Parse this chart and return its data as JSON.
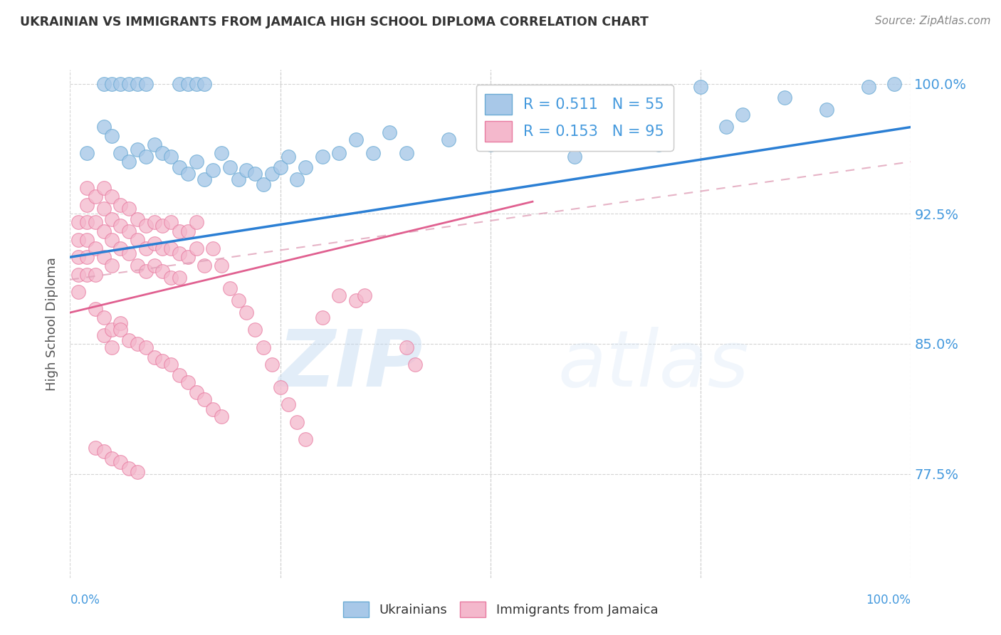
{
  "title": "UKRAINIAN VS IMMIGRANTS FROM JAMAICA HIGH SCHOOL DIPLOMA CORRELATION CHART",
  "source": "Source: ZipAtlas.com",
  "ylabel": "High School Diploma",
  "watermark_zip": "ZIP",
  "watermark_atlas": "atlas",
  "legend_line1": "R = 0.511   N = 55",
  "legend_line2": "R = 0.153   N = 95",
  "legend_label1": "Ukrainians",
  "legend_label2": "Immigrants from Jamaica",
  "blue_scatter_color": "#a8c8e8",
  "blue_edge_color": "#6aaad4",
  "pink_scatter_color": "#f4b8cc",
  "pink_edge_color": "#e87aa0",
  "blue_line_color": "#2b7fd4",
  "pink_line_color": "#e06090",
  "dashed_line_color": "#e0a0b8",
  "ytick_color": "#4499dd",
  "title_color": "#333333",
  "source_color": "#888888",
  "background_color": "#ffffff",
  "grid_color": "#d0d0d0",
  "xlim": [
    0.0,
    1.0
  ],
  "ylim": [
    0.715,
    1.008
  ],
  "yticks": [
    0.775,
    0.85,
    0.925,
    1.0
  ],
  "ytick_labels": [
    "77.5%",
    "85.0%",
    "92.5%",
    "100.0%"
  ],
  "blue_line_y0": 0.9,
  "blue_line_y1": 0.975,
  "pink_line_x0": 0.0,
  "pink_line_x1": 0.55,
  "pink_line_y0": 0.868,
  "pink_line_y1": 0.932,
  "dashed_line_x0": 0.0,
  "dashed_line_x1": 1.0,
  "dashed_line_y0": 0.887,
  "dashed_line_y1": 0.955,
  "blue_scatter_x": [
    0.02,
    0.04,
    0.05,
    0.06,
    0.07,
    0.08,
    0.09,
    0.1,
    0.11,
    0.12,
    0.13,
    0.14,
    0.15,
    0.16,
    0.17,
    0.18,
    0.19,
    0.2,
    0.21,
    0.22,
    0.23,
    0.24,
    0.25,
    0.26,
    0.27,
    0.28,
    0.3,
    0.32,
    0.34,
    0.36,
    0.38,
    0.4,
    0.45,
    0.5,
    0.55,
    0.6,
    0.65,
    0.7,
    0.75,
    0.78,
    0.8,
    0.85,
    0.9,
    0.95,
    0.98,
    0.04,
    0.05,
    0.06,
    0.07,
    0.08,
    0.09,
    0.13,
    0.14,
    0.15,
    0.16
  ],
  "blue_scatter_y": [
    0.96,
    0.975,
    0.97,
    0.96,
    0.955,
    0.962,
    0.958,
    0.965,
    0.96,
    0.958,
    0.952,
    0.948,
    0.955,
    0.945,
    0.95,
    0.96,
    0.952,
    0.945,
    0.95,
    0.948,
    0.942,
    0.948,
    0.952,
    0.958,
    0.945,
    0.952,
    0.958,
    0.96,
    0.968,
    0.96,
    0.972,
    0.96,
    0.968,
    0.965,
    0.972,
    0.958,
    0.978,
    0.965,
    0.998,
    0.975,
    0.982,
    0.992,
    0.985,
    0.998,
    1.0,
    1.0,
    1.0,
    1.0,
    1.0,
    1.0,
    1.0,
    1.0,
    1.0,
    1.0,
    1.0
  ],
  "pink_scatter_x": [
    0.01,
    0.01,
    0.01,
    0.01,
    0.01,
    0.02,
    0.02,
    0.02,
    0.02,
    0.02,
    0.02,
    0.03,
    0.03,
    0.03,
    0.03,
    0.04,
    0.04,
    0.04,
    0.04,
    0.05,
    0.05,
    0.05,
    0.05,
    0.06,
    0.06,
    0.06,
    0.07,
    0.07,
    0.07,
    0.08,
    0.08,
    0.08,
    0.09,
    0.09,
    0.09,
    0.1,
    0.1,
    0.1,
    0.11,
    0.11,
    0.11,
    0.12,
    0.12,
    0.12,
    0.13,
    0.13,
    0.13,
    0.14,
    0.14,
    0.15,
    0.15,
    0.16,
    0.17,
    0.18,
    0.19,
    0.2,
    0.21,
    0.22,
    0.23,
    0.24,
    0.25,
    0.26,
    0.27,
    0.28,
    0.3,
    0.32,
    0.34,
    0.35,
    0.4,
    0.41,
    0.03,
    0.04,
    0.04,
    0.05,
    0.05,
    0.06,
    0.06,
    0.07,
    0.08,
    0.09,
    0.1,
    0.11,
    0.12,
    0.13,
    0.14,
    0.15,
    0.16,
    0.17,
    0.18,
    0.03,
    0.04,
    0.05,
    0.06,
    0.07,
    0.08
  ],
  "pink_scatter_y": [
    0.92,
    0.91,
    0.9,
    0.89,
    0.88,
    0.94,
    0.93,
    0.92,
    0.91,
    0.9,
    0.89,
    0.935,
    0.92,
    0.905,
    0.89,
    0.94,
    0.928,
    0.915,
    0.9,
    0.935,
    0.922,
    0.91,
    0.895,
    0.93,
    0.918,
    0.905,
    0.928,
    0.915,
    0.902,
    0.922,
    0.91,
    0.895,
    0.918,
    0.905,
    0.892,
    0.92,
    0.908,
    0.895,
    0.918,
    0.905,
    0.892,
    0.92,
    0.905,
    0.888,
    0.915,
    0.902,
    0.888,
    0.915,
    0.9,
    0.92,
    0.905,
    0.895,
    0.905,
    0.895,
    0.882,
    0.875,
    0.868,
    0.858,
    0.848,
    0.838,
    0.825,
    0.815,
    0.805,
    0.795,
    0.865,
    0.878,
    0.875,
    0.878,
    0.848,
    0.838,
    0.87,
    0.865,
    0.855,
    0.858,
    0.848,
    0.862,
    0.858,
    0.852,
    0.85,
    0.848,
    0.842,
    0.84,
    0.838,
    0.832,
    0.828,
    0.822,
    0.818,
    0.812,
    0.808,
    0.79,
    0.788,
    0.784,
    0.782,
    0.778,
    0.776
  ]
}
